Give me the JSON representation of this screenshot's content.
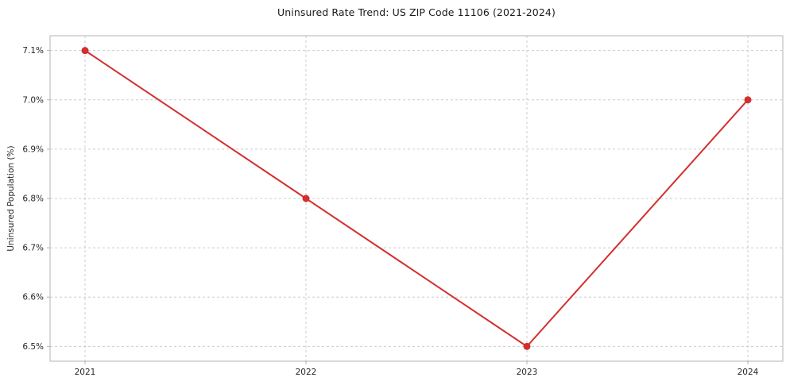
{
  "chart_data": {
    "type": "line",
    "title": "Uninsured Rate Trend: US ZIP Code 11106 (2021-2024)",
    "xlabel": "",
    "ylabel": "Uninsured Population (%)",
    "categories": [
      "2021",
      "2022",
      "2023",
      "2024"
    ],
    "values": [
      7.1,
      6.8,
      6.5,
      7.0
    ],
    "yticks": [
      6.5,
      6.6,
      6.7,
      6.8,
      6.9,
      7.0,
      7.1
    ],
    "ytick_labels": [
      "6.5%",
      "6.6%",
      "6.7%",
      "6.8%",
      "6.9%",
      "7.0%",
      "7.1%"
    ],
    "ylim": [
      6.47,
      7.13
    ],
    "grid": true,
    "grid_style": "dashed",
    "legend": false,
    "line_color": "#d32f2f",
    "marker_color": "#d32f2f",
    "grid_color": "#cccccc",
    "axis_color": "#b3b3b3",
    "text_color": "#262626",
    "background_color": "#ffffff"
  }
}
